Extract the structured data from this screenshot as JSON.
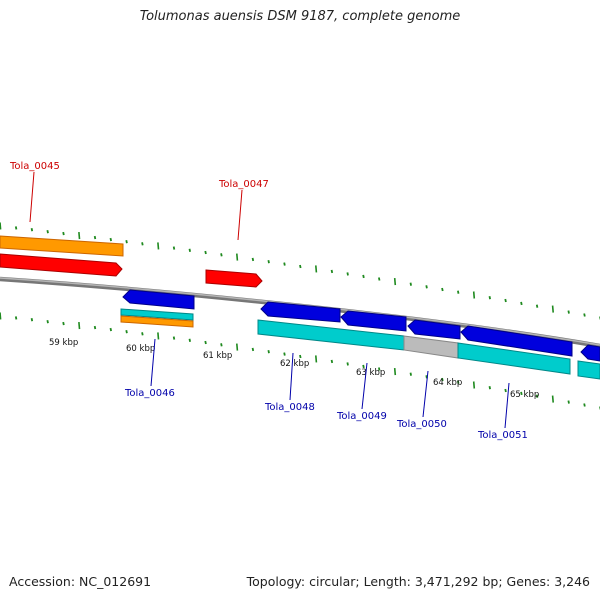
{
  "title": "Tolumonas auensis DSM 9187, complete genome",
  "footer": {
    "accession": "Accession: NC_012691",
    "topology": "Topology: circular; Length: 3,471,292 bp; Genes: 3,246"
  },
  "colors": {
    "backbone": "#8a8a8a",
    "tick": "#1f8a1f",
    "label_forward": "#cc0000",
    "label_reverse": "#0000aa",
    "cds_forward": "#ff0000",
    "cds_reverse": "#0000dd",
    "gene_forward": "#ff9900",
    "gene_reverse": "#00cccc",
    "other": "#bbbbbb"
  },
  "scale_labels": [
    "59 kbp",
    "60 kbp",
    "61 kbp",
    "62 kbp",
    "63 kbp",
    "64 kbp",
    "65 kbp"
  ],
  "gene_labels": [
    "Tola_0045",
    "Tola_0046",
    "Tola_0047",
    "Tola_0048",
    "Tola_0049",
    "Tola_0050",
    "Tola_0051"
  ]
}
